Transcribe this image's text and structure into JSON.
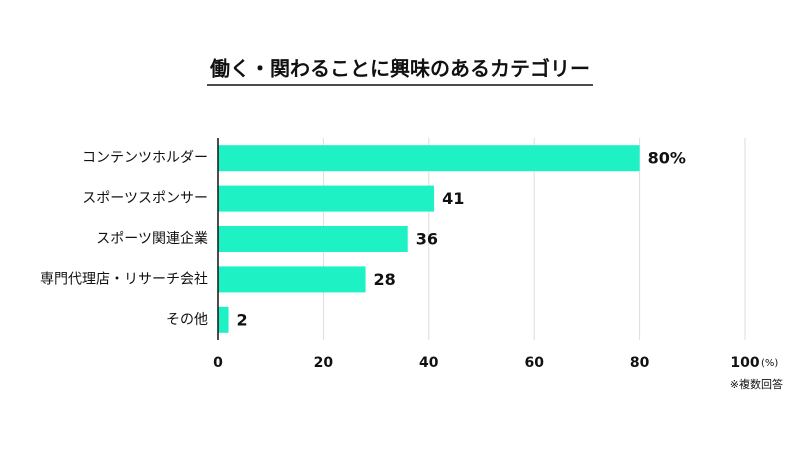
{
  "chart_data": {
    "type": "bar",
    "orientation": "horizontal",
    "title": "働く・関わることに興味のあるカテゴリー",
    "categories": [
      "コンテンツホルダー",
      "スポーツスポンサー",
      "スポーツ関連企業",
      "専門代理店・リサーチ会社",
      "その他"
    ],
    "values": [
      80,
      41,
      36,
      28,
      2
    ],
    "value_labels": [
      "80%",
      "41",
      "36",
      "28",
      "2"
    ],
    "color": "#1ef2c4",
    "xlim": [
      0,
      100
    ],
    "xticks": [
      0,
      20,
      40,
      60,
      80,
      100
    ],
    "x_unit": "(%)",
    "note": "※複数回答",
    "grid": true
  }
}
